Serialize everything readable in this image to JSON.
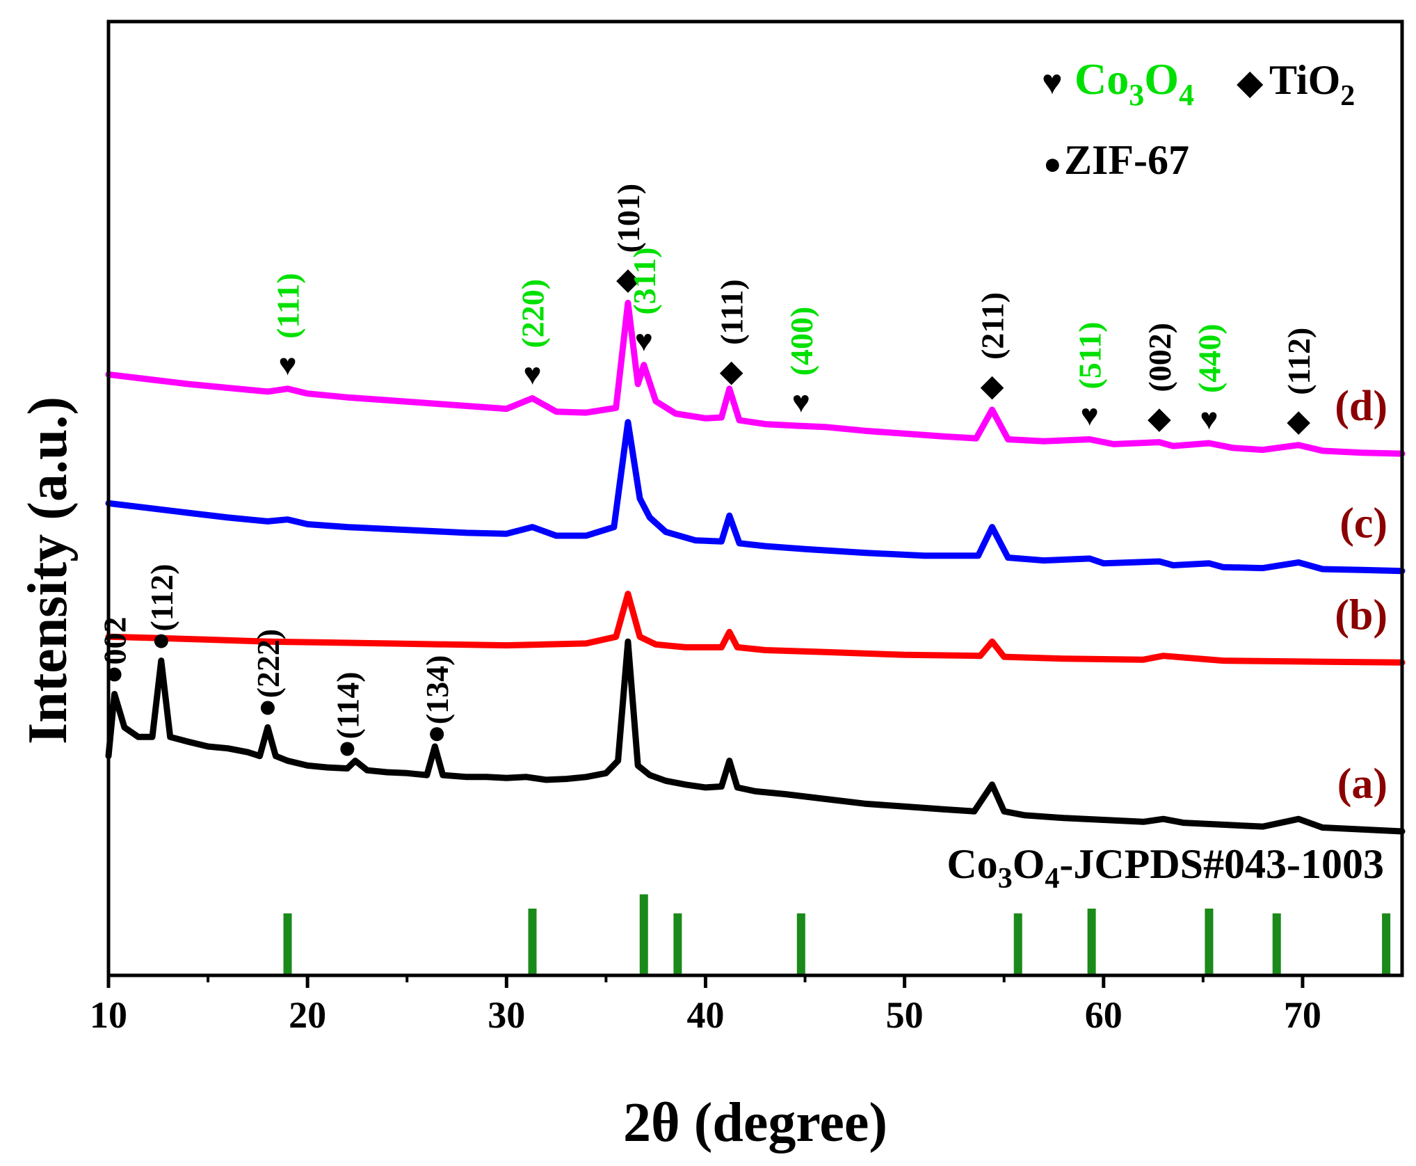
{
  "chart_data": {
    "type": "line",
    "xlabel": "2θ (degree)",
    "ylabel": "Intensity (a.u.)",
    "xlim": [
      10,
      75
    ],
    "ylim": [
      0,
      100
    ],
    "x_ticks": [
      10,
      20,
      30,
      40,
      50,
      60,
      70
    ],
    "legend": [
      {
        "symbol": "♥",
        "label": "Co",
        "sub1": "3",
        "mid": "O",
        "sub2": "4",
        "color": "#00e000"
      },
      {
        "symbol": "◆",
        "label": "TiO",
        "sub1": "2",
        "color": "#000000"
      },
      {
        "symbol": "●",
        "label": "ZIF-67",
        "color": "#000000"
      }
    ],
    "reference": {
      "label_main": "Co",
      "sub1": "3",
      "mid": "O",
      "sub2": "4",
      "label_rest": "-JCPDS#043-1003",
      "color": "#1a8a1a",
      "positions": [
        19.0,
        31.3,
        36.9,
        38.6,
        44.8,
        55.7,
        59.4,
        65.3,
        68.7,
        74.2
      ],
      "heights": [
        6.5,
        7.0,
        8.5,
        6.5,
        6.5,
        6.5,
        7.0,
        7.0,
        6.5,
        6.5
      ]
    },
    "series": [
      {
        "name": "(a)",
        "label": "(a)",
        "color": "#000000",
        "label_color": "#8b0000",
        "points": [
          [
            10,
            23
          ],
          [
            10.3,
            29.5
          ],
          [
            10.8,
            26
          ],
          [
            11.5,
            25
          ],
          [
            12.2,
            25
          ],
          [
            12.65,
            33
          ],
          [
            13.1,
            25
          ],
          [
            14,
            24.5
          ],
          [
            15,
            24
          ],
          [
            16,
            23.8
          ],
          [
            17,
            23.4
          ],
          [
            17.6,
            23
          ],
          [
            18,
            26
          ],
          [
            18.4,
            23
          ],
          [
            19,
            22.5
          ],
          [
            20,
            22
          ],
          [
            21,
            21.8
          ],
          [
            22,
            21.7
          ],
          [
            22.4,
            22.5
          ],
          [
            23,
            21.5
          ],
          [
            24,
            21.3
          ],
          [
            25,
            21.2
          ],
          [
            26,
            21
          ],
          [
            26.4,
            24
          ],
          [
            26.8,
            21
          ],
          [
            28,
            20.8
          ],
          [
            29,
            20.8
          ],
          [
            30,
            20.7
          ],
          [
            31,
            20.8
          ],
          [
            32,
            20.5
          ],
          [
            33,
            20.6
          ],
          [
            34,
            20.8
          ],
          [
            35,
            21.2
          ],
          [
            35.6,
            22.5
          ],
          [
            36.1,
            35
          ],
          [
            36.6,
            22
          ],
          [
            37.2,
            21
          ],
          [
            38,
            20.4
          ],
          [
            39,
            20
          ],
          [
            40,
            19.7
          ],
          [
            40.8,
            19.8
          ],
          [
            41.2,
            22.5
          ],
          [
            41.6,
            19.7
          ],
          [
            42.5,
            19.3
          ],
          [
            44,
            19
          ],
          [
            46,
            18.5
          ],
          [
            48,
            18
          ],
          [
            50,
            17.7
          ],
          [
            52,
            17.4
          ],
          [
            53.5,
            17.2
          ],
          [
            54.4,
            20
          ],
          [
            55,
            17.2
          ],
          [
            56,
            16.8
          ],
          [
            58,
            16.5
          ],
          [
            60,
            16.3
          ],
          [
            62,
            16.1
          ],
          [
            63,
            16.4
          ],
          [
            64,
            16
          ],
          [
            66,
            15.8
          ],
          [
            68,
            15.6
          ],
          [
            69.8,
            16.4
          ],
          [
            71,
            15.5
          ],
          [
            73,
            15.3
          ],
          [
            75,
            15.1
          ]
        ],
        "labels": [
          {
            "x": 10.3,
            "text": "002"
          },
          {
            "x": 12.65,
            "text": "(112)"
          },
          {
            "x": 18,
            "text": "(222)"
          },
          {
            "x": 22,
            "text": "(114)"
          },
          {
            "x": 26.5,
            "text": "(134)"
          }
        ]
      },
      {
        "name": "(b)",
        "label": "(b)",
        "color": "#ff0000",
        "label_color": "#8b0000",
        "points": [
          [
            10,
            35.5
          ],
          [
            12,
            35.4
          ],
          [
            15,
            35.2
          ],
          [
            18,
            35
          ],
          [
            21,
            34.9
          ],
          [
            24,
            34.8
          ],
          [
            27,
            34.7
          ],
          [
            30,
            34.6
          ],
          [
            32,
            34.7
          ],
          [
            34,
            34.8
          ],
          [
            35.5,
            35.5
          ],
          [
            36.1,
            40
          ],
          [
            36.7,
            35.5
          ],
          [
            37.5,
            34.7
          ],
          [
            39,
            34.4
          ],
          [
            40.8,
            34.4
          ],
          [
            41.2,
            36
          ],
          [
            41.6,
            34.4
          ],
          [
            43,
            34.1
          ],
          [
            46,
            33.9
          ],
          [
            50,
            33.6
          ],
          [
            53.8,
            33.5
          ],
          [
            54.4,
            35
          ],
          [
            55,
            33.4
          ],
          [
            58,
            33.2
          ],
          [
            62,
            33.1
          ],
          [
            63,
            33.5
          ],
          [
            66,
            33
          ],
          [
            70,
            32.9
          ],
          [
            75,
            32.8
          ]
        ]
      },
      {
        "name": "(c)",
        "label": "(c)",
        "color": "#0000ff",
        "label_color": "#8b0000",
        "points": [
          [
            10,
            49.5
          ],
          [
            12,
            49
          ],
          [
            14,
            48.5
          ],
          [
            16,
            48
          ],
          [
            18,
            47.6
          ],
          [
            19,
            47.8
          ],
          [
            20,
            47.3
          ],
          [
            22,
            47
          ],
          [
            24,
            46.8
          ],
          [
            26,
            46.6
          ],
          [
            28,
            46.4
          ],
          [
            30,
            46.3
          ],
          [
            31.3,
            47
          ],
          [
            32.5,
            46.1
          ],
          [
            34,
            46.1
          ],
          [
            35.4,
            47
          ],
          [
            36.1,
            58
          ],
          [
            36.7,
            50
          ],
          [
            37.2,
            48
          ],
          [
            38,
            46.5
          ],
          [
            39.5,
            45.6
          ],
          [
            40.8,
            45.5
          ],
          [
            41.2,
            48.2
          ],
          [
            41.7,
            45.3
          ],
          [
            43,
            45
          ],
          [
            45,
            44.7
          ],
          [
            48,
            44.3
          ],
          [
            51,
            44
          ],
          [
            53.7,
            44
          ],
          [
            54.4,
            47
          ],
          [
            55.2,
            43.8
          ],
          [
            57,
            43.5
          ],
          [
            59.3,
            43.7
          ],
          [
            60,
            43.2
          ],
          [
            62.8,
            43.4
          ],
          [
            63.5,
            43
          ],
          [
            65.3,
            43.2
          ],
          [
            66,
            42.8
          ],
          [
            68,
            42.7
          ],
          [
            69.8,
            43.3
          ],
          [
            71,
            42.6
          ],
          [
            73,
            42.5
          ],
          [
            75,
            42.4
          ]
        ]
      },
      {
        "name": "(d)",
        "label": "(d)",
        "color": "#ff00ff",
        "label_color": "#8b0000",
        "points": [
          [
            10,
            63
          ],
          [
            12,
            62.5
          ],
          [
            14,
            62
          ],
          [
            16,
            61.6
          ],
          [
            18,
            61.2
          ],
          [
            19,
            61.5
          ],
          [
            20,
            61
          ],
          [
            22,
            60.6
          ],
          [
            24,
            60.3
          ],
          [
            26,
            60
          ],
          [
            28,
            59.7
          ],
          [
            30,
            59.4
          ],
          [
            31.3,
            60.5
          ],
          [
            32.5,
            59.1
          ],
          [
            34,
            59
          ],
          [
            35.5,
            59.5
          ],
          [
            36.1,
            70.5
          ],
          [
            36.6,
            62
          ],
          [
            36.9,
            64
          ],
          [
            37.5,
            60.2
          ],
          [
            38.5,
            58.9
          ],
          [
            40,
            58.4
          ],
          [
            40.8,
            58.5
          ],
          [
            41.2,
            61.5
          ],
          [
            41.7,
            58.2
          ],
          [
            43,
            57.8
          ],
          [
            44.8,
            57.6
          ],
          [
            46,
            57.5
          ],
          [
            48,
            57.1
          ],
          [
            50,
            56.8
          ],
          [
            52,
            56.5
          ],
          [
            53.6,
            56.3
          ],
          [
            54.4,
            59.3
          ],
          [
            55.2,
            56.2
          ],
          [
            57,
            56
          ],
          [
            59.3,
            56.2
          ],
          [
            60.5,
            55.7
          ],
          [
            62.8,
            55.9
          ],
          [
            63.5,
            55.5
          ],
          [
            65.3,
            55.8
          ],
          [
            66.5,
            55.3
          ],
          [
            68,
            55.1
          ],
          [
            69.8,
            55.6
          ],
          [
            71,
            55
          ],
          [
            73,
            54.8
          ],
          [
            75,
            54.7
          ]
        ],
        "labels": [
          {
            "x": 19,
            "sym": "♥",
            "text": "(111)",
            "color": "#00e000"
          },
          {
            "x": 31.3,
            "sym": "♥",
            "text": "(220)",
            "color": "#00e000"
          },
          {
            "x": 36.1,
            "sym": "◆",
            "text": "(101)",
            "color": "#000000"
          },
          {
            "x": 36.9,
            "sym": "♥",
            "text": "(311)",
            "color": "#00e000"
          },
          {
            "x": 41.3,
            "sym": "◆",
            "text": "(111)",
            "color": "#000000"
          },
          {
            "x": 44.8,
            "sym": "♥",
            "text": "(400)",
            "color": "#00e000"
          },
          {
            "x": 54.4,
            "sym": "◆",
            "text": "(211)",
            "color": "#000000"
          },
          {
            "x": 59.3,
            "sym": "♥",
            "text": "(511)",
            "color": "#00e000"
          },
          {
            "x": 62.8,
            "sym": "◆",
            "text": "(002)",
            "color": "#000000"
          },
          {
            "x": 65.3,
            "sym": "♥",
            "text": "(440)",
            "color": "#00e000"
          },
          {
            "x": 69.8,
            "sym": "◆",
            "text": "(112)",
            "color": "#000000"
          }
        ]
      }
    ]
  }
}
